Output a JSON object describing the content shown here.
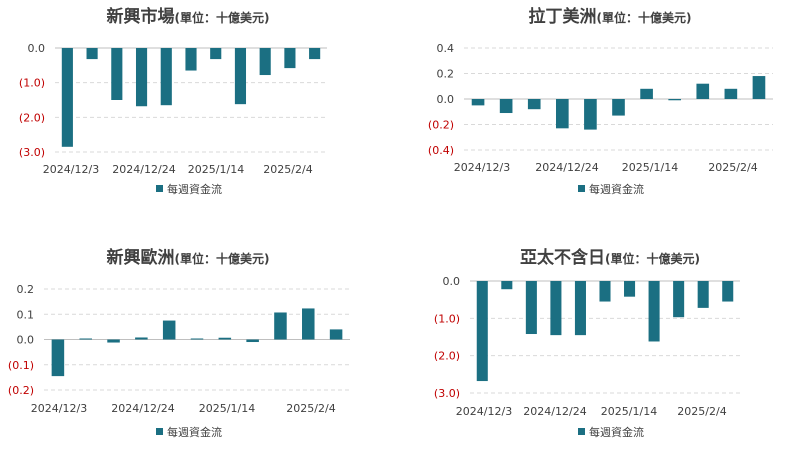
{
  "colors": {
    "bar": "#1b6f82",
    "negative_label": "#c00000",
    "grid": "#d9d9d9",
    "text": "#404040"
  },
  "chart_data": [
    {
      "type": "bar",
      "title": "新興市場",
      "unit": "(單位：十億美元)",
      "series": [
        {
          "name": "每週資金流",
          "values": [
            -2.85,
            -0.32,
            -1.5,
            -1.68,
            -1.65,
            -0.65,
            -0.32,
            -1.62,
            -0.78,
            -0.58,
            -0.32
          ]
        }
      ],
      "xtick_labels": [
        "2024/12/3",
        "2024/12/24",
        "2025/1/14",
        "2025/2/4"
      ],
      "ytick_labels": [
        "0.0",
        "(1.0)",
        "(2.0)",
        "(3.0)"
      ],
      "ylim": [
        -3.0,
        0.0
      ],
      "grid": true,
      "legend": "bottom"
    },
    {
      "type": "bar",
      "title": "拉丁美洲",
      "unit": "(單位：十億美元)",
      "series": [
        {
          "name": "每週資金流",
          "values": [
            -0.05,
            -0.11,
            -0.08,
            -0.23,
            -0.24,
            -0.13,
            0.08,
            -0.01,
            0.12,
            0.08,
            0.18
          ]
        }
      ],
      "xtick_labels": [
        "2024/12/3",
        "2024/12/24",
        "2025/1/14",
        "2025/2/4"
      ],
      "ytick_labels": [
        "0.4",
        "0.2",
        "0.0",
        "(0.2)",
        "(0.4)"
      ],
      "ylim": [
        -0.4,
        0.4
      ],
      "grid": true,
      "legend": "bottom"
    },
    {
      "type": "bar",
      "title": "新興歐洲",
      "unit": "(單位：十億美元)",
      "series": [
        {
          "name": "每週資金流",
          "values": [
            -0.145,
            0.004,
            -0.012,
            0.008,
            0.075,
            0.004,
            0.007,
            -0.01,
            0.107,
            0.123,
            0.04
          ]
        }
      ],
      "xtick_labels": [
        "2024/12/3",
        "2024/12/24",
        "2025/1/14",
        "2025/2/4"
      ],
      "ytick_labels": [
        "0.2",
        "0.1",
        "0.0",
        "(0.1)",
        "(0.2)"
      ],
      "ylim": [
        -0.2,
        0.2
      ],
      "grid": true,
      "legend": "bottom"
    },
    {
      "type": "bar",
      "title": "亞太不含日",
      "unit": "(單位：十億美元)",
      "series": [
        {
          "name": "每週資金流",
          "values": [
            -2.68,
            -0.22,
            -1.42,
            -1.45,
            -1.45,
            -0.55,
            -0.42,
            -1.62,
            -0.97,
            -0.72,
            -0.55
          ]
        }
      ],
      "xtick_labels": [
        "2024/12/3",
        "2024/12/24",
        "2025/1/14",
        "2025/2/4"
      ],
      "ytick_labels": [
        "0.0",
        "(1.0)",
        "(2.0)",
        "(3.0)"
      ],
      "ylim": [
        -3.0,
        0.0
      ],
      "grid": true,
      "legend": "bottom"
    }
  ]
}
